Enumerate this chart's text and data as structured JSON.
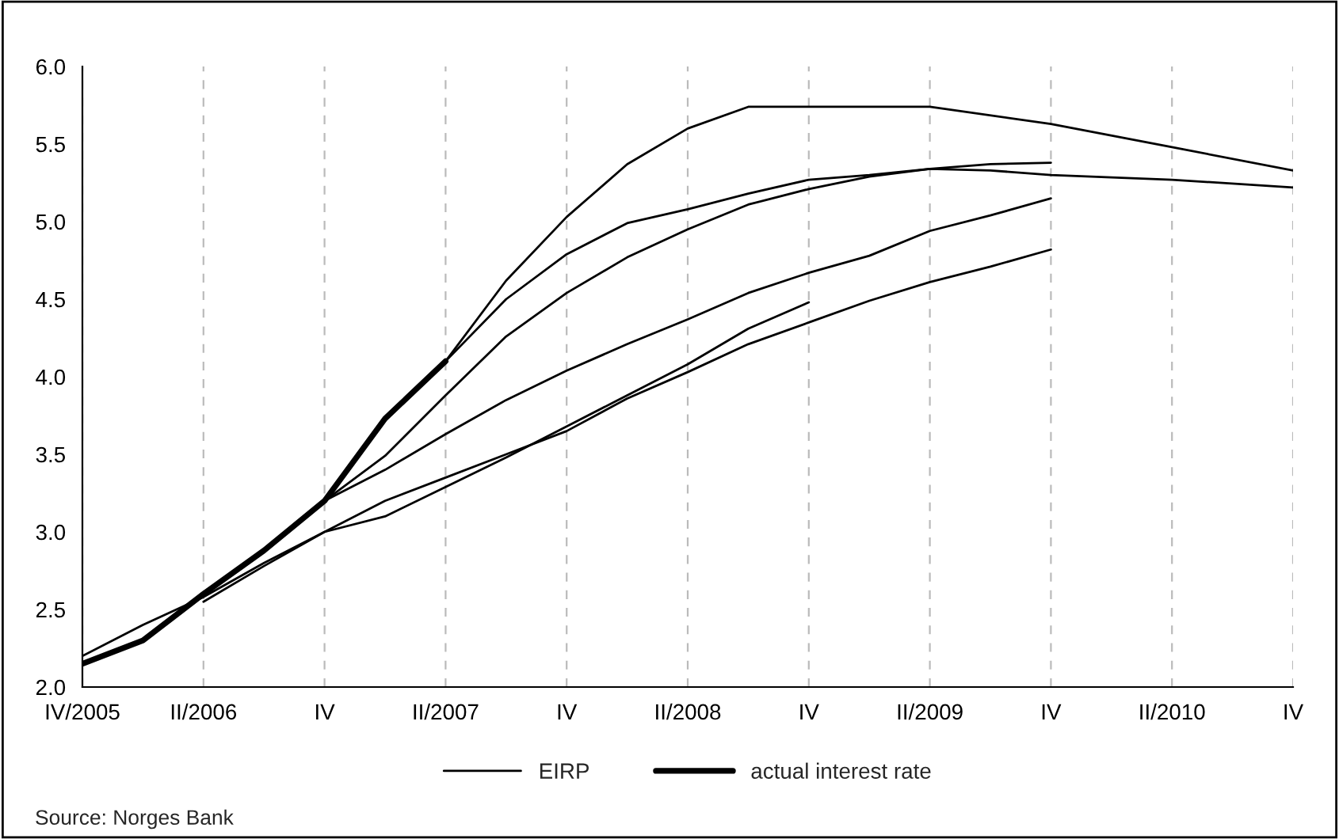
{
  "chart_data": {
    "type": "line",
    "categories": [
      "IV/2005",
      null,
      "II/2006",
      null,
      "IV",
      null,
      "II/2007",
      null,
      "IV",
      null,
      "II/2008",
      null,
      "IV",
      null,
      "II/2009",
      null,
      "IV",
      null,
      "II/2010",
      null,
      "IV"
    ],
    "series": [
      {
        "name": "EIRP",
        "color": "#000000",
        "values": [
          2.2,
          2.4,
          2.58,
          2.8,
          3.0,
          3.2,
          3.35,
          3.5,
          3.65,
          3.86,
          4.03,
          4.21,
          4.35,
          4.49,
          4.61,
          4.71,
          4.82,
          null,
          null,
          null,
          null
        ]
      },
      {
        "color": "#000000",
        "values": [
          null,
          null,
          2.55,
          2.78,
          3.0,
          3.1,
          3.29,
          3.48,
          3.68,
          3.88,
          4.08,
          4.31,
          4.48,
          null,
          null,
          null,
          null,
          null,
          null,
          null,
          null
        ]
      },
      {
        "color": "#000000",
        "values": [
          null,
          null,
          null,
          null,
          3.2,
          3.4,
          3.63,
          3.85,
          4.04,
          4.21,
          4.37,
          4.54,
          4.67,
          4.78,
          4.94,
          5.04,
          5.15,
          null,
          null,
          null,
          null
        ]
      },
      {
        "color": "#000000",
        "values": [
          null,
          null,
          null,
          null,
          3.2,
          3.49,
          3.88,
          4.26,
          4.54,
          4.77,
          4.95,
          5.11,
          5.21,
          5.29,
          5.34,
          5.37,
          5.38,
          null,
          null,
          null,
          null
        ]
      },
      {
        "color": "#000000",
        "values": [
          null,
          null,
          null,
          null,
          null,
          null,
          4.1,
          4.5,
          4.79,
          4.99,
          5.08,
          5.18,
          5.27,
          5.3,
          5.34,
          5.33,
          5.3,
          null,
          5.27,
          null,
          5.22
        ]
      },
      {
        "color": "#000000",
        "values": [
          null,
          null,
          null,
          null,
          null,
          null,
          4.1,
          4.62,
          5.03,
          5.37,
          5.6,
          5.74,
          5.74,
          5.74,
          5.74,
          null,
          5.63,
          null,
          5.48,
          null,
          5.33
        ]
      },
      {
        "name": "actual interest rate",
        "color": "#000000",
        "values": [
          2.15,
          2.3,
          2.6,
          2.88,
          3.2,
          3.73,
          4.1,
          null,
          null,
          null,
          null,
          null,
          null,
          null,
          null,
          null,
          null,
          null,
          null,
          null,
          null
        ]
      }
    ],
    "ylim": [
      2,
      6
    ],
    "yticks": [
      {
        "value": 2,
        "label": "2.0"
      },
      {
        "value": 2.5,
        "label": "2.5"
      },
      {
        "value": 3,
        "label": "3.0"
      },
      {
        "value": 3.5,
        "label": "3.5"
      },
      {
        "value": 4,
        "label": "4.0"
      },
      {
        "value": 4.5,
        "label": "4.5"
      },
      {
        "value": 5,
        "label": "5.0"
      },
      {
        "value": 5.5,
        "label": "5.5"
      },
      {
        "value": 6,
        "label": "6.0"
      }
    ],
    "grid": "x",
    "legend": "bottom",
    "marker": "none",
    "line_style": "solid",
    "annotations": [
      "Source: Norges Bank"
    ]
  }
}
